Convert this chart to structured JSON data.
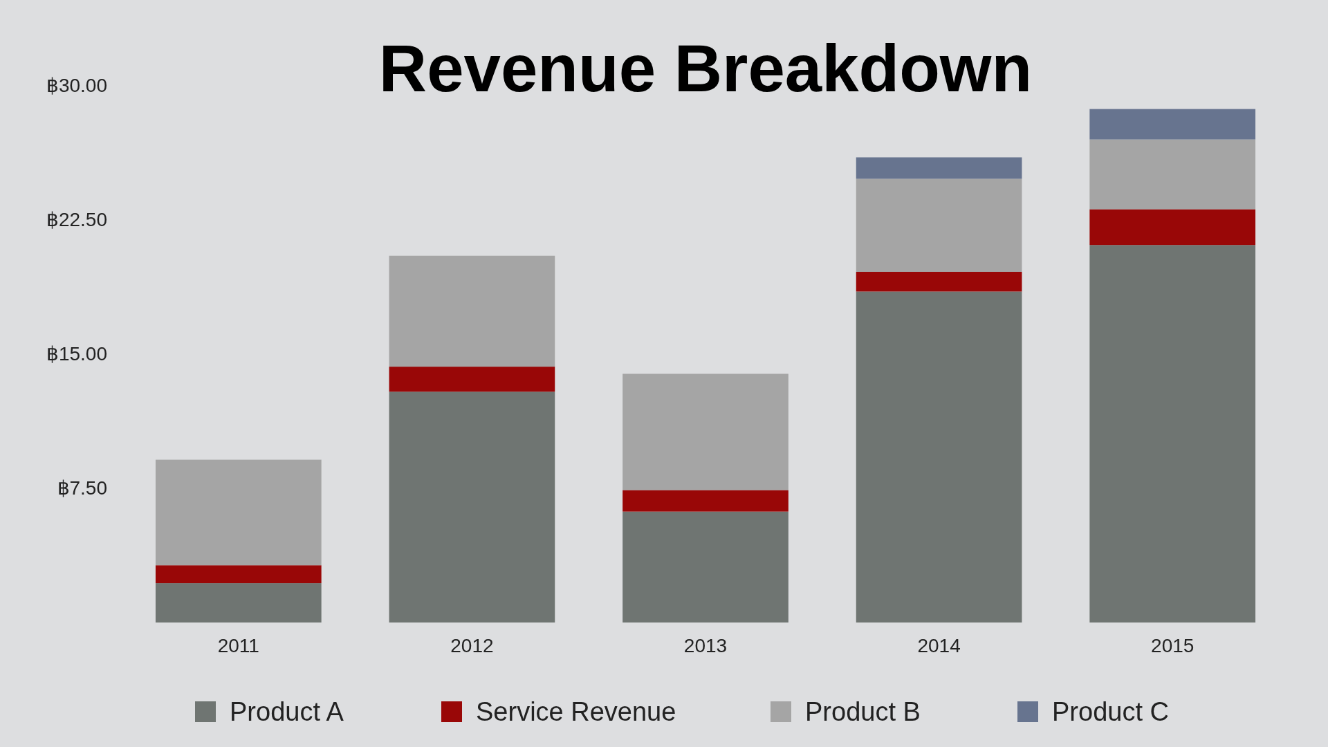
{
  "chart_data": {
    "type": "bar",
    "title": "Revenue Breakdown",
    "stacked": true,
    "categories": [
      "2011",
      "2012",
      "2013",
      "2014",
      "2015"
    ],
    "series": [
      {
        "name": "Product A",
        "color": "#6f7572",
        "values": [
          2.2,
          12.9,
          6.2,
          18.5,
          21.1
        ]
      },
      {
        "name": "Service Revenue",
        "color": "#990707",
        "values": [
          1,
          1.4,
          1.2,
          1.1,
          2
        ]
      },
      {
        "name": "Product B",
        "color": "#a5a5a5",
        "values": [
          5.9,
          6.2,
          6.5,
          5.2,
          3.9
        ]
      },
      {
        "name": "Product C",
        "color": "#67748f",
        "values": [
          null,
          null,
          null,
          1.2,
          1.7
        ]
      }
    ],
    "ylim": [
      0,
      30
    ],
    "yticks": [
      {
        "value": 7.5,
        "label": "฿7.50"
      },
      {
        "value": 15,
        "label": "฿15.00"
      },
      {
        "value": 22.5,
        "label": "฿22.50"
      },
      {
        "value": 30,
        "label": "฿30.00"
      }
    ],
    "grid": false,
    "legend": "bottom"
  }
}
